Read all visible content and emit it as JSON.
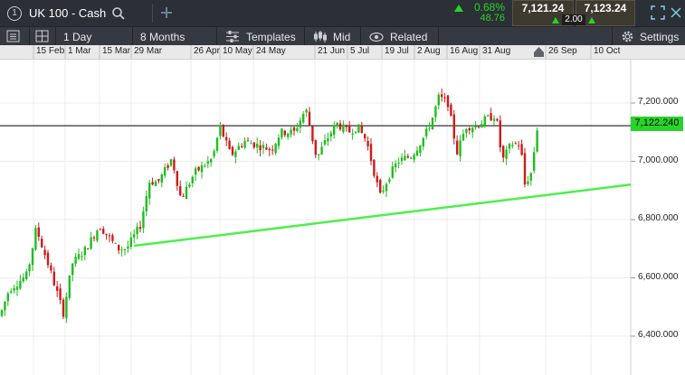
{
  "instrument": {
    "name": "UK 100 - Cash",
    "badge": "1"
  },
  "change": {
    "percent": "0.68%",
    "points": "48.76"
  },
  "bid": "7,121.24",
  "ask": "7,123.24",
  "spread": "2.00",
  "toolbar": {
    "interval": "1 Day",
    "range": "8 Months",
    "templates": "Templates",
    "price_type": "Mid",
    "related": "Related",
    "settings": "Settings"
  },
  "date_labels": [
    "15 Feb",
    "1 Mar",
    "15 Mar",
    "29 Mar",
    "26 Apr",
    "10 May",
    "24 May",
    "21 Jun",
    "5 Jul",
    "19 Jul",
    "2 Aug",
    "16 Aug",
    "31 Aug",
    "26 Sep",
    "10 Oct"
  ],
  "price_axis": {
    "labels": [
      "7,200.000",
      "7,000.000",
      "6,800.000",
      "6,600.000",
      "6,400.000"
    ],
    "current": "7,122.240"
  },
  "chart_data": {
    "type": "candlestick",
    "y_ticks": [
      7200,
      7000,
      6800,
      6600,
      6400
    ],
    "current_price": 7122.24,
    "trendline": {
      "start_price": 6710,
      "end_price": 6920
    },
    "colors": {
      "up": "#1fbe1f",
      "down": "#d11a1a",
      "trendline": "#4cf04c",
      "current_line": "#000000"
    }
  },
  "icons": {
    "search": "search-icon",
    "add": "plus-icon",
    "up_arrow": "up-arrow-icon",
    "fullscreen": "fullscreen-icon"
  }
}
